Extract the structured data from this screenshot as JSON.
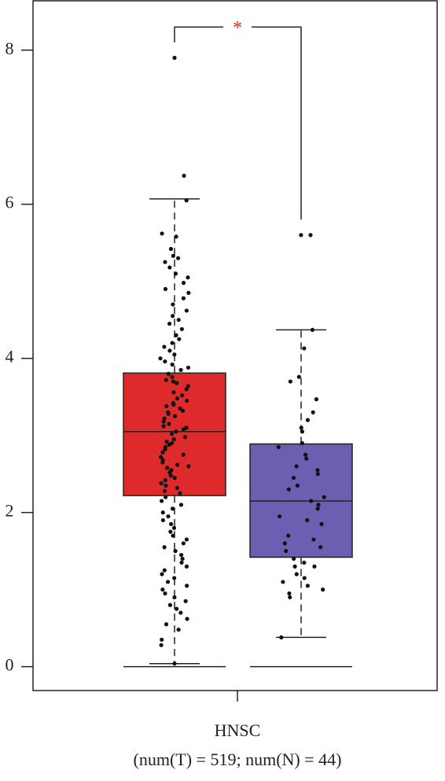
{
  "chart_data": {
    "type": "box",
    "categories": [
      "HNSC"
    ],
    "x_label": "(num(T) = 519; num(N) = 44)",
    "ylim": [
      -0.31,
      8.64
    ],
    "yticks": [
      0,
      2,
      4,
      6,
      8
    ],
    "series": [
      {
        "color": "#de2a2a",
        "q1": 2.22,
        "median": 3.05,
        "q3": 3.81,
        "whisker_low": 0.04,
        "whisker_high": 6.07,
        "outliers": [
          6.37,
          7.9
        ],
        "points": [
          6.05,
          5.62,
          5.58,
          5.42,
          5.33,
          5.3,
          5.25,
          5.18,
          5.1,
          5.05,
          4.98,
          4.9,
          4.85,
          4.78,
          4.7,
          4.62,
          4.55,
          4.5,
          4.45,
          4.38,
          4.3,
          4.25,
          4.2,
          4.15,
          4.1,
          4.05,
          4.0,
          3.96,
          3.92,
          3.88,
          3.85,
          3.8,
          3.76,
          3.72,
          3.68,
          3.64,
          3.6,
          3.56,
          3.52,
          3.48,
          3.45,
          3.42,
          3.38,
          3.35,
          3.32,
          3.28,
          3.25,
          3.22,
          3.18,
          3.15,
          3.12,
          3.08,
          3.05,
          3.02,
          2.98,
          2.95,
          2.92,
          2.88,
          2.85,
          2.82,
          2.78,
          2.75,
          2.72,
          2.68,
          2.65,
          2.62,
          2.58,
          2.55,
          2.52,
          2.48,
          2.45,
          2.42,
          2.38,
          2.35,
          2.32,
          2.28,
          2.25,
          2.2,
          2.15,
          2.1,
          2.05,
          2.0,
          1.95,
          1.9,
          1.85,
          1.8,
          1.75,
          1.7,
          1.65,
          1.6,
          1.55,
          1.5,
          1.45,
          1.4,
          1.35,
          1.3,
          1.25,
          1.2,
          1.15,
          1.1,
          1.05,
          1.0,
          0.95,
          0.9,
          0.85,
          0.8,
          0.75,
          0.7,
          0.62,
          0.55,
          0.48,
          0.35,
          0.28,
          0.04,
          3.7,
          3.4,
          3.1,
          2.9,
          2.6,
          3.3
        ]
      },
      {
        "color": "#6a5fb1",
        "q1": 1.42,
        "median": 2.15,
        "q3": 2.89,
        "whisker_low": 0.38,
        "whisker_high": 4.37,
        "outliers": [
          5.6
        ],
        "points": [
          4.37,
          4.13,
          3.76,
          3.7,
          3.47,
          3.3,
          3.1,
          3.05,
          2.9,
          2.85,
          2.75,
          2.7,
          2.6,
          2.55,
          2.45,
          2.35,
          2.3,
          2.2,
          2.15,
          2.1,
          2.05,
          1.95,
          1.9,
          1.85,
          1.7,
          1.65,
          1.6,
          1.55,
          1.5,
          1.4,
          1.35,
          1.3,
          1.2,
          1.15,
          1.1,
          1.05,
          1.0,
          0.95,
          0.9,
          1.3,
          2.5,
          3.2,
          0.38,
          5.6
        ]
      }
    ],
    "significance": {
      "label": "*",
      "color": "#de2a2a",
      "y": 8.3,
      "left_end": 8.1,
      "right_end": 5.8
    }
  }
}
